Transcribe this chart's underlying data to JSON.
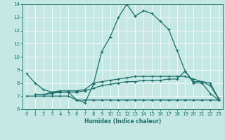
{
  "xlabel": "Humidex (Indice chaleur)",
  "xlim": [
    -0.5,
    23.5
  ],
  "ylim": [
    6,
    14
  ],
  "yticks": [
    6,
    7,
    8,
    9,
    10,
    11,
    12,
    13,
    14
  ],
  "xticks": [
    0,
    1,
    2,
    3,
    4,
    5,
    6,
    7,
    8,
    9,
    10,
    11,
    12,
    13,
    14,
    15,
    16,
    17,
    18,
    19,
    20,
    21,
    22,
    23
  ],
  "bg_color": "#c5e8e5",
  "line_color": "#1a7068",
  "grid_color": "#ffffff",
  "line1_x": [
    0,
    1,
    2,
    3,
    4,
    5,
    6,
    7,
    8,
    9,
    10,
    11,
    12,
    13,
    14,
    15,
    16,
    17,
    18,
    19,
    20,
    21,
    22,
    23
  ],
  "line1_y": [
    8.7,
    8.0,
    7.5,
    7.3,
    7.3,
    7.3,
    6.7,
    6.5,
    7.9,
    10.4,
    11.5,
    13.0,
    14.0,
    13.1,
    13.5,
    13.3,
    12.7,
    12.1,
    10.5,
    8.9,
    8.0,
    8.0,
    7.2,
    6.7
  ],
  "line2_x": [
    1,
    2,
    3,
    4,
    5,
    6,
    7,
    8,
    9,
    10,
    11,
    12,
    13,
    14,
    15,
    16,
    17,
    18,
    19,
    20,
    21,
    22,
    23
  ],
  "line2_y": [
    7.1,
    7.1,
    7.2,
    7.3,
    7.3,
    7.3,
    7.4,
    7.6,
    7.8,
    7.9,
    8.0,
    8.1,
    8.1,
    8.2,
    8.2,
    8.2,
    8.3,
    8.3,
    8.9,
    8.1,
    8.1,
    8.0,
    6.8
  ],
  "line3_x": [
    1,
    2,
    3,
    4,
    5,
    6,
    7,
    8,
    9,
    10,
    11,
    12,
    13,
    14,
    15,
    16,
    17,
    18,
    19,
    20,
    21,
    22,
    23
  ],
  "line3_y": [
    7.1,
    7.1,
    7.3,
    7.4,
    7.4,
    7.4,
    7.5,
    8.0,
    8.1,
    8.2,
    8.3,
    8.4,
    8.5,
    8.5,
    8.5,
    8.5,
    8.5,
    8.5,
    8.5,
    8.3,
    8.1,
    7.8,
    6.8
  ],
  "line4_x": [
    0,
    1,
    2,
    3,
    4,
    5,
    6,
    7,
    8,
    9,
    10,
    11,
    12,
    13,
    14,
    15,
    16,
    17,
    18,
    19,
    20,
    21,
    22,
    23
  ],
  "line4_y": [
    7.0,
    7.0,
    7.0,
    7.0,
    7.0,
    7.0,
    6.7,
    6.7,
    6.7,
    6.7,
    6.7,
    6.7,
    6.7,
    6.7,
    6.7,
    6.7,
    6.7,
    6.7,
    6.7,
    6.7,
    6.7,
    6.7,
    6.7,
    6.7
  ],
  "lw": 0.9,
  "ms": 3.0,
  "tick_labelsize": 5,
  "xlabel_fontsize": 5.5
}
